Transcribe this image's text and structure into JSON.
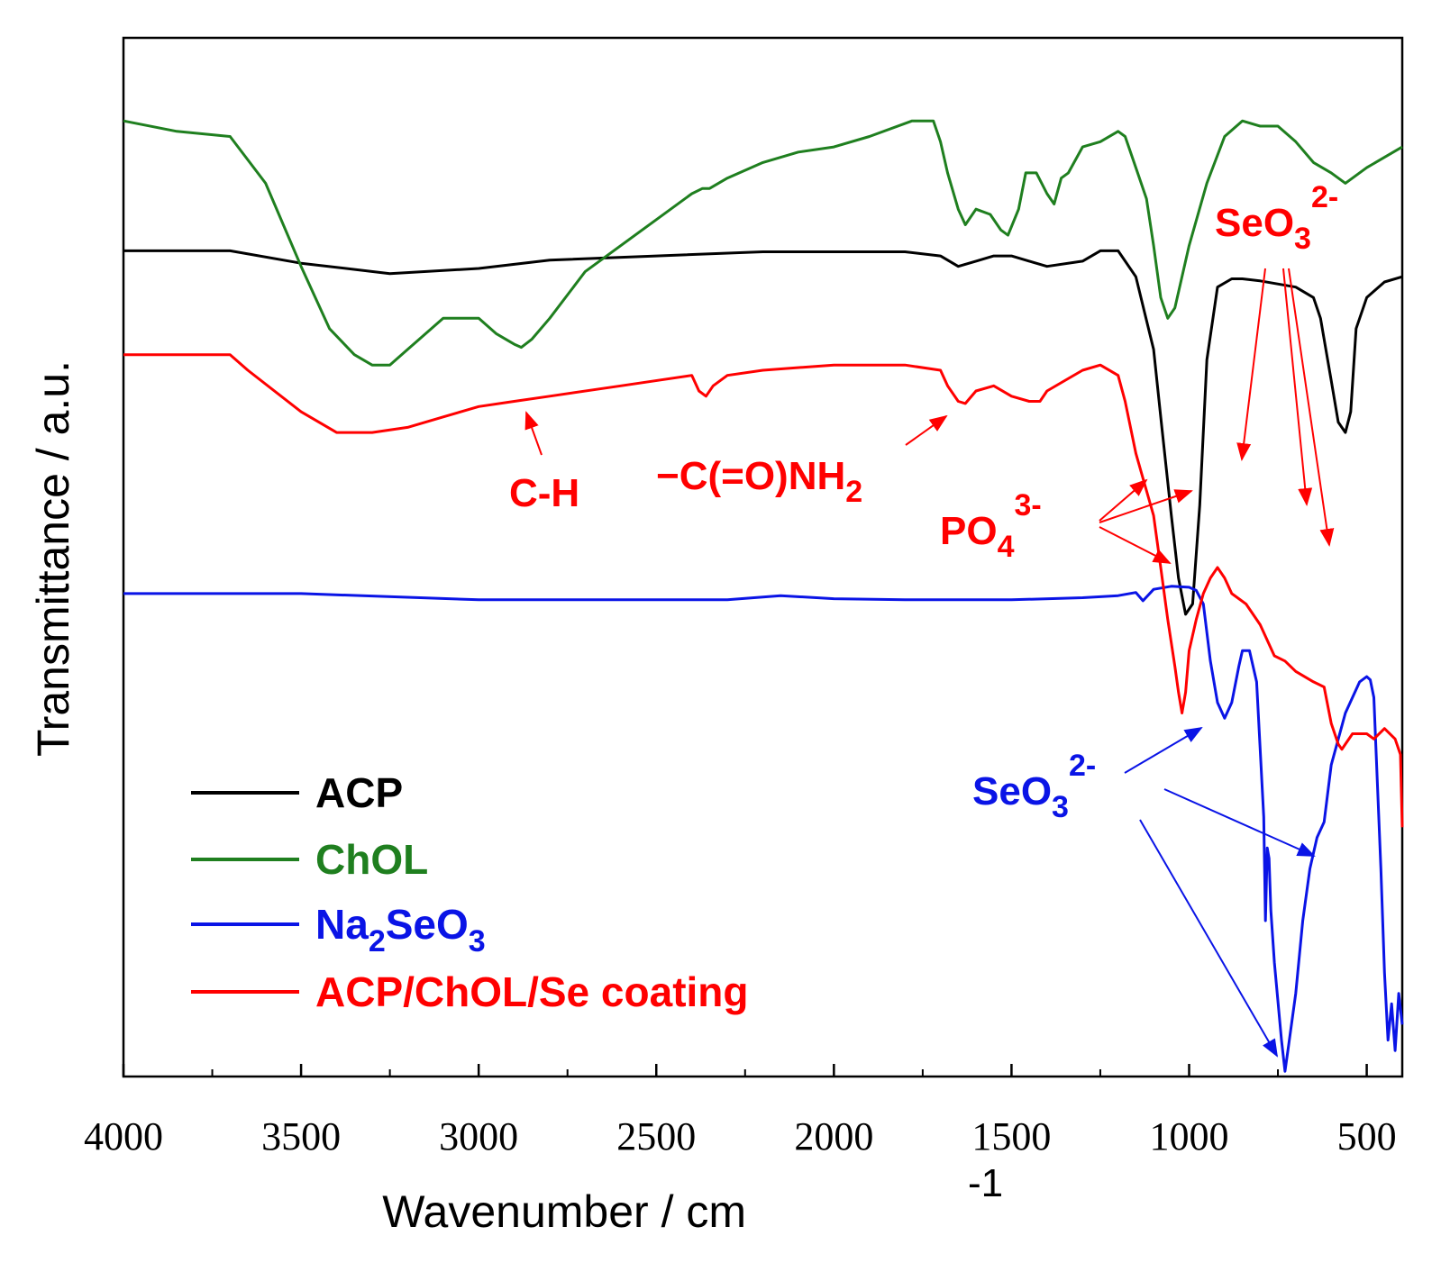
{
  "chart_data": {
    "type": "line",
    "xlabel": "Wavenumber / cm",
    "xlabel_sup": "-1",
    "ylabel": "Transmittance / a.u.",
    "xlim": [
      4000,
      400
    ],
    "x_reversed": true,
    "ylim": [
      0,
      100
    ],
    "y_ticks_labeled": false,
    "x_ticks": [
      4000,
      3500,
      3000,
      2500,
      2000,
      1500,
      1000,
      500
    ],
    "x_tick_labels": [
      "4000",
      "3500",
      "3000",
      "2500",
      "2000",
      "1500",
      "1000",
      "500"
    ],
    "legend_position": "lower-left",
    "series": [
      {
        "name": "ACP",
        "color": "#000000",
        "x": [
          4000,
          3700,
          3500,
          3250,
          3000,
          2800,
          2500,
          2200,
          2000,
          1800,
          1700,
          1650,
          1600,
          1550,
          1500,
          1450,
          1400,
          1300,
          1250,
          1200,
          1150,
          1100,
          1080,
          1050,
          1030,
          1010,
          990,
          970,
          950,
          920,
          880,
          850,
          800,
          700,
          650,
          630,
          600,
          580,
          560,
          545,
          530,
          500,
          450,
          400
        ],
        "y": [
          79.5,
          79.5,
          78.3,
          77.3,
          77.8,
          78.6,
          79.0,
          79.4,
          79.4,
          79.4,
          79.0,
          78.0,
          78.5,
          79.0,
          79.0,
          78.5,
          78.0,
          78.5,
          79.5,
          79.5,
          77.0,
          70.0,
          63.5,
          54.0,
          48.0,
          44.5,
          45.5,
          55.0,
          69.0,
          76.0,
          76.8,
          76.8,
          76.6,
          76.0,
          75.0,
          73.0,
          67.0,
          63.0,
          62.0,
          64.0,
          72.0,
          75.0,
          76.5,
          77.0
        ]
      },
      {
        "name": "ChOL",
        "color": "#1f7f1f",
        "x": [
          4000,
          3850,
          3700,
          3600,
          3500,
          3420,
          3350,
          3300,
          3250,
          3200,
          3100,
          3000,
          2950,
          2900,
          2880,
          2850,
          2800,
          2700,
          2500,
          2400,
          2370,
          2350,
          2300,
          2200,
          2100,
          2000,
          1900,
          1780,
          1720,
          1700,
          1680,
          1650,
          1630,
          1600,
          1560,
          1530,
          1510,
          1480,
          1460,
          1430,
          1400,
          1380,
          1360,
          1340,
          1300,
          1250,
          1200,
          1180,
          1150,
          1120,
          1100,
          1080,
          1060,
          1040,
          1000,
          950,
          900,
          850,
          800,
          750,
          700,
          650,
          600,
          560,
          500,
          450,
          400
        ],
        "y": [
          92.0,
          91.0,
          90.5,
          86.0,
          78.0,
          72.0,
          69.5,
          68.5,
          68.5,
          70.0,
          73.0,
          73.0,
          71.5,
          70.5,
          70.2,
          71.0,
          73.0,
          77.5,
          82.5,
          85.0,
          85.5,
          85.5,
          86.5,
          88.0,
          89.0,
          89.5,
          90.5,
          92.0,
          92.0,
          90.0,
          87.0,
          83.5,
          82.0,
          83.5,
          83.0,
          81.5,
          81.0,
          83.5,
          87.0,
          87.0,
          85.0,
          84.0,
          86.5,
          87.0,
          89.5,
          90.0,
          91.0,
          90.5,
          87.5,
          84.5,
          80.0,
          75.0,
          73.0,
          74.0,
          80.0,
          86.0,
          90.5,
          92.0,
          91.5,
          91.5,
          90.0,
          88.0,
          87.0,
          86.0,
          87.5,
          88.5,
          89.5
        ]
      },
      {
        "name": "Na2SeO3",
        "color": "#0a14e6",
        "x": [
          4000,
          3500,
          3000,
          2500,
          2300,
          2150,
          2000,
          1800,
          1500,
          1300,
          1200,
          1150,
          1130,
          1100,
          1050,
          1000,
          980,
          960,
          940,
          920,
          900,
          880,
          860,
          850,
          830,
          810,
          790,
          785,
          780,
          775,
          770,
          760,
          740,
          730,
          720,
          700,
          680,
          660,
          640,
          620,
          600,
          560,
          520,
          500,
          490,
          480,
          460,
          450,
          440,
          430,
          420,
          410,
          400
        ],
        "y": [
          46.5,
          46.5,
          45.9,
          45.9,
          45.9,
          46.3,
          46.0,
          45.9,
          45.9,
          46.1,
          46.3,
          46.6,
          45.8,
          46.9,
          47.2,
          47.1,
          46.8,
          45.5,
          40.0,
          36.0,
          34.5,
          36.0,
          39.5,
          41.0,
          41.0,
          38.0,
          25.0,
          15.0,
          22.0,
          21.0,
          16.0,
          11.0,
          3.5,
          0.5,
          3.0,
          8.0,
          15.0,
          20.0,
          23.0,
          24.5,
          30.0,
          35.0,
          38.0,
          38.5,
          38.2,
          36.5,
          20.0,
          10.0,
          3.5,
          7.0,
          2.5,
          8.0,
          5.0
        ]
      },
      {
        "name": "ACP/ChOL/Se coating",
        "color": "#ff0000",
        "x": [
          4000,
          3850,
          3700,
          3650,
          3500,
          3400,
          3300,
          3200,
          3100,
          3000,
          2900,
          2800,
          2600,
          2400,
          2380,
          2360,
          2340,
          2300,
          2200,
          2000,
          1800,
          1700,
          1680,
          1650,
          1630,
          1600,
          1550,
          1500,
          1450,
          1420,
          1400,
          1350,
          1300,
          1250,
          1200,
          1180,
          1150,
          1100,
          1080,
          1060,
          1040,
          1030,
          1020,
          1010,
          1000,
          980,
          960,
          940,
          920,
          900,
          880,
          860,
          840,
          800,
          760,
          730,
          700,
          650,
          620,
          600,
          580,
          570,
          560,
          540,
          520,
          500,
          480,
          450,
          420,
          405,
          400
        ],
        "y": [
          69.5,
          69.5,
          69.5,
          68.0,
          64.0,
          62.0,
          62.0,
          62.5,
          63.5,
          64.5,
          65.0,
          65.5,
          66.5,
          67.5,
          66.0,
          65.5,
          66.5,
          67.5,
          68.0,
          68.5,
          68.5,
          68.0,
          66.5,
          65.0,
          64.8,
          66.0,
          66.5,
          65.5,
          65.0,
          65.0,
          66.0,
          67.0,
          68.0,
          68.5,
          67.5,
          65.0,
          60.0,
          54.0,
          49.0,
          44.0,
          39.5,
          37.0,
          35.0,
          37.0,
          41.0,
          44.0,
          46.5,
          48.0,
          49.0,
          48.0,
          46.5,
          46.0,
          45.5,
          43.5,
          40.5,
          40.0,
          39.0,
          38.0,
          37.5,
          34.0,
          32.0,
          31.5,
          32.0,
          33.0,
          33.0,
          33.0,
          32.5,
          33.5,
          32.5,
          31.0,
          24.0
        ]
      }
    ],
    "annotations": [
      {
        "id": "ch",
        "text": "C-H",
        "color": "#ff0000"
      },
      {
        "id": "amide",
        "text": "−C(=O)NH",
        "sub": "2",
        "color": "#ff0000"
      },
      {
        "id": "po4",
        "text": "PO",
        "sub": "4",
        "sup": "3-",
        "color": "#ff0000"
      },
      {
        "id": "seo3_red",
        "text": "SeO",
        "sub": "3",
        "sup": "2-",
        "color": "#ff0000"
      },
      {
        "id": "seo3_blue",
        "text": "SeO",
        "sub": "3",
        "sup": "2-",
        "color": "#0a14e6"
      }
    ],
    "legend": [
      {
        "label": "ACP",
        "color": "#000000"
      },
      {
        "label": "ChOL",
        "color": "#1f7f1f"
      },
      {
        "label": "Na",
        "sub": "2",
        "label2": "SeO",
        "sub2": "3",
        "color": "#0a14e6"
      },
      {
        "label": "ACP/ChOL/Se coating",
        "color": "#ff0000"
      }
    ]
  }
}
